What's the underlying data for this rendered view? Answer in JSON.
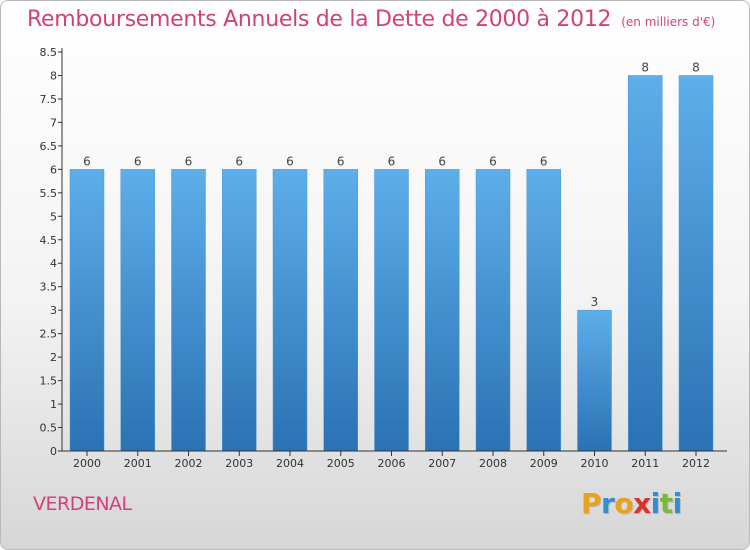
{
  "title": "Remboursements Annuels de la Dette de 2000 à 2012",
  "unit": "(en milliers d'€)",
  "commune": "VERDENAL",
  "logo": {
    "letters": [
      "P",
      "r",
      "o",
      "x",
      "i",
      "t",
      "i"
    ],
    "colors": [
      "#e8a21d",
      "#2f8fd0",
      "#e8a21d",
      "#d8342c",
      "#2f8fd0",
      "#7ab83b",
      "#2f8fd0"
    ]
  },
  "colors": {
    "title": "#d2427a",
    "bar_top": "#5eaeea",
    "bar_bottom": "#2a72b3",
    "axis": "#333333"
  },
  "chart_data": {
    "type": "bar",
    "categories": [
      "2000",
      "2001",
      "2002",
      "2003",
      "2004",
      "2005",
      "2006",
      "2007",
      "2008",
      "2009",
      "2010",
      "2011",
      "2012"
    ],
    "values": [
      6,
      6,
      6,
      6,
      6,
      6,
      6,
      6,
      6,
      6,
      3,
      8,
      8
    ],
    "data_labels": [
      "6",
      "6",
      "6",
      "6",
      "6",
      "6",
      "6",
      "6",
      "6",
      "6",
      "3",
      "8",
      "8"
    ],
    "ylim": [
      0,
      8.5
    ],
    "yticks": [
      "0",
      "0.5",
      "1",
      "1.5",
      "2",
      "2.5",
      "3",
      "3.5",
      "4",
      "4.5",
      "5",
      "5.5",
      "6",
      "6.5",
      "7",
      "7.5",
      "8",
      "8.5"
    ],
    "ytick_values": [
      0,
      0.5,
      1,
      1.5,
      2,
      2.5,
      3,
      3.5,
      4,
      4.5,
      5,
      5.5,
      6,
      6.5,
      7,
      7.5,
      8,
      8.5
    ],
    "grid": false,
    "legend": "none"
  }
}
